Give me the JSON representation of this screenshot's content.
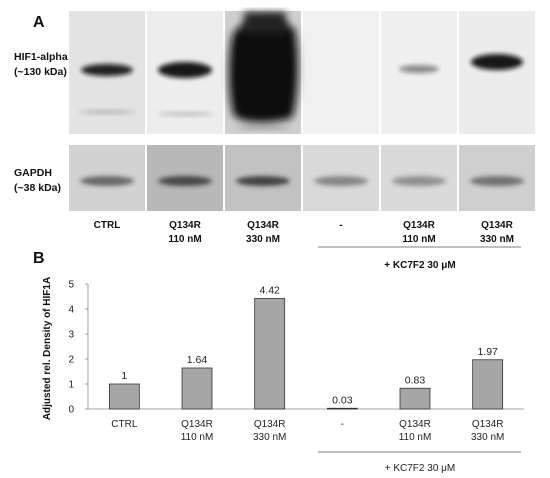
{
  "panel_a": {
    "label": "A",
    "rows": [
      {
        "label_line1": "HIF1-alpha",
        "label_line2": "(~130 kDa)"
      },
      {
        "label_line1": "GAPDH",
        "label_line2": "(~38 kDa)"
      }
    ],
    "lanes": [
      {
        "line1": "CTRL",
        "line2": ""
      },
      {
        "line1": "Q134R",
        "line2": "110 nM"
      },
      {
        "line1": "Q134R",
        "line2": "330 nM"
      },
      {
        "line1": "-",
        "line2": ""
      },
      {
        "line1": "Q134R",
        "line2": "110 nM"
      },
      {
        "line1": "Q134R",
        "line2": "330 nM"
      }
    ],
    "group_label": "+ KC7F2 30 μM"
  },
  "panel_b": {
    "label": "B",
    "group_label": "+ KC7F2 30 μM"
  },
  "chart_data": {
    "type": "bar",
    "categories": [
      "CTRL",
      "Q134R 110 nM",
      "Q134R 330 nM",
      "-",
      "Q134R 110 nM",
      "Q134R 330 nM"
    ],
    "category_lines": [
      [
        "CTRL"
      ],
      [
        "Q134R",
        "110 nM"
      ],
      [
        "Q134R",
        "330 nM"
      ],
      [
        "-"
      ],
      [
        "Q134R",
        "110 nM"
      ],
      [
        "Q134R",
        "330 nM"
      ]
    ],
    "values": [
      1,
      1.64,
      4.42,
      0.03,
      0.83,
      1.97
    ],
    "data_labels": [
      "1",
      "1.64",
      "4.42",
      "0.03",
      "0.83",
      "1.97"
    ],
    "ylabel": "Adjusted rel. Density of HIF1A",
    "xlabel": "",
    "ylim": [
      0,
      5
    ],
    "yticks": [
      0,
      1,
      2,
      3,
      4,
      5
    ],
    "grid": false,
    "bar_color": "#a6a6a6",
    "bar_edge_color": "#333333"
  }
}
